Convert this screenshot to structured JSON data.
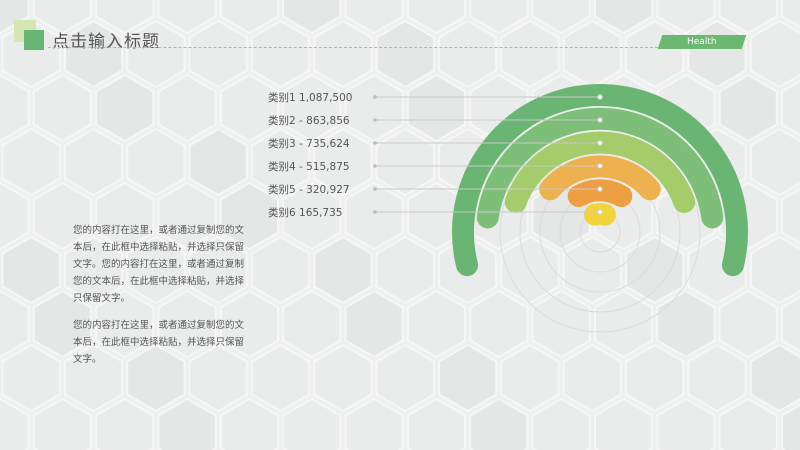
{
  "header": {
    "title": "点击输入标题",
    "badge": "Health"
  },
  "body": {
    "paragraph1": "您的内容打在这里，或者通过复制您的文本后，在此框中选择粘贴，并选择只保留文字。您的内容打在这里，或者通过复制您的文本后，在此框中选择粘贴，并选择只保留文字。",
    "paragraph2": "您的内容打在这里，或者通过复制您的文本后，在此框中选择粘贴，并选择只保留文字。"
  },
  "chart_data": {
    "type": "bar",
    "variant": "radial-semicircle",
    "categories": [
      "类别1",
      "类别2",
      "类别3",
      "类别4",
      "类别5",
      "类别6"
    ],
    "values": [
      1087500,
      863856,
      735624,
      515875,
      320927,
      165735
    ],
    "labels": [
      "类别1  1,087,500",
      "类别2 - 863,856",
      "类别3 - 735,624",
      "类别4 - 515,875",
      "类别5 - 320,927",
      "类别6  165,735"
    ],
    "colors": [
      "#6bb574",
      "#7dbf79",
      "#a5cc6b",
      "#eeb14f",
      "#ee9e43",
      "#f2d33c"
    ],
    "legend_position": "left"
  }
}
